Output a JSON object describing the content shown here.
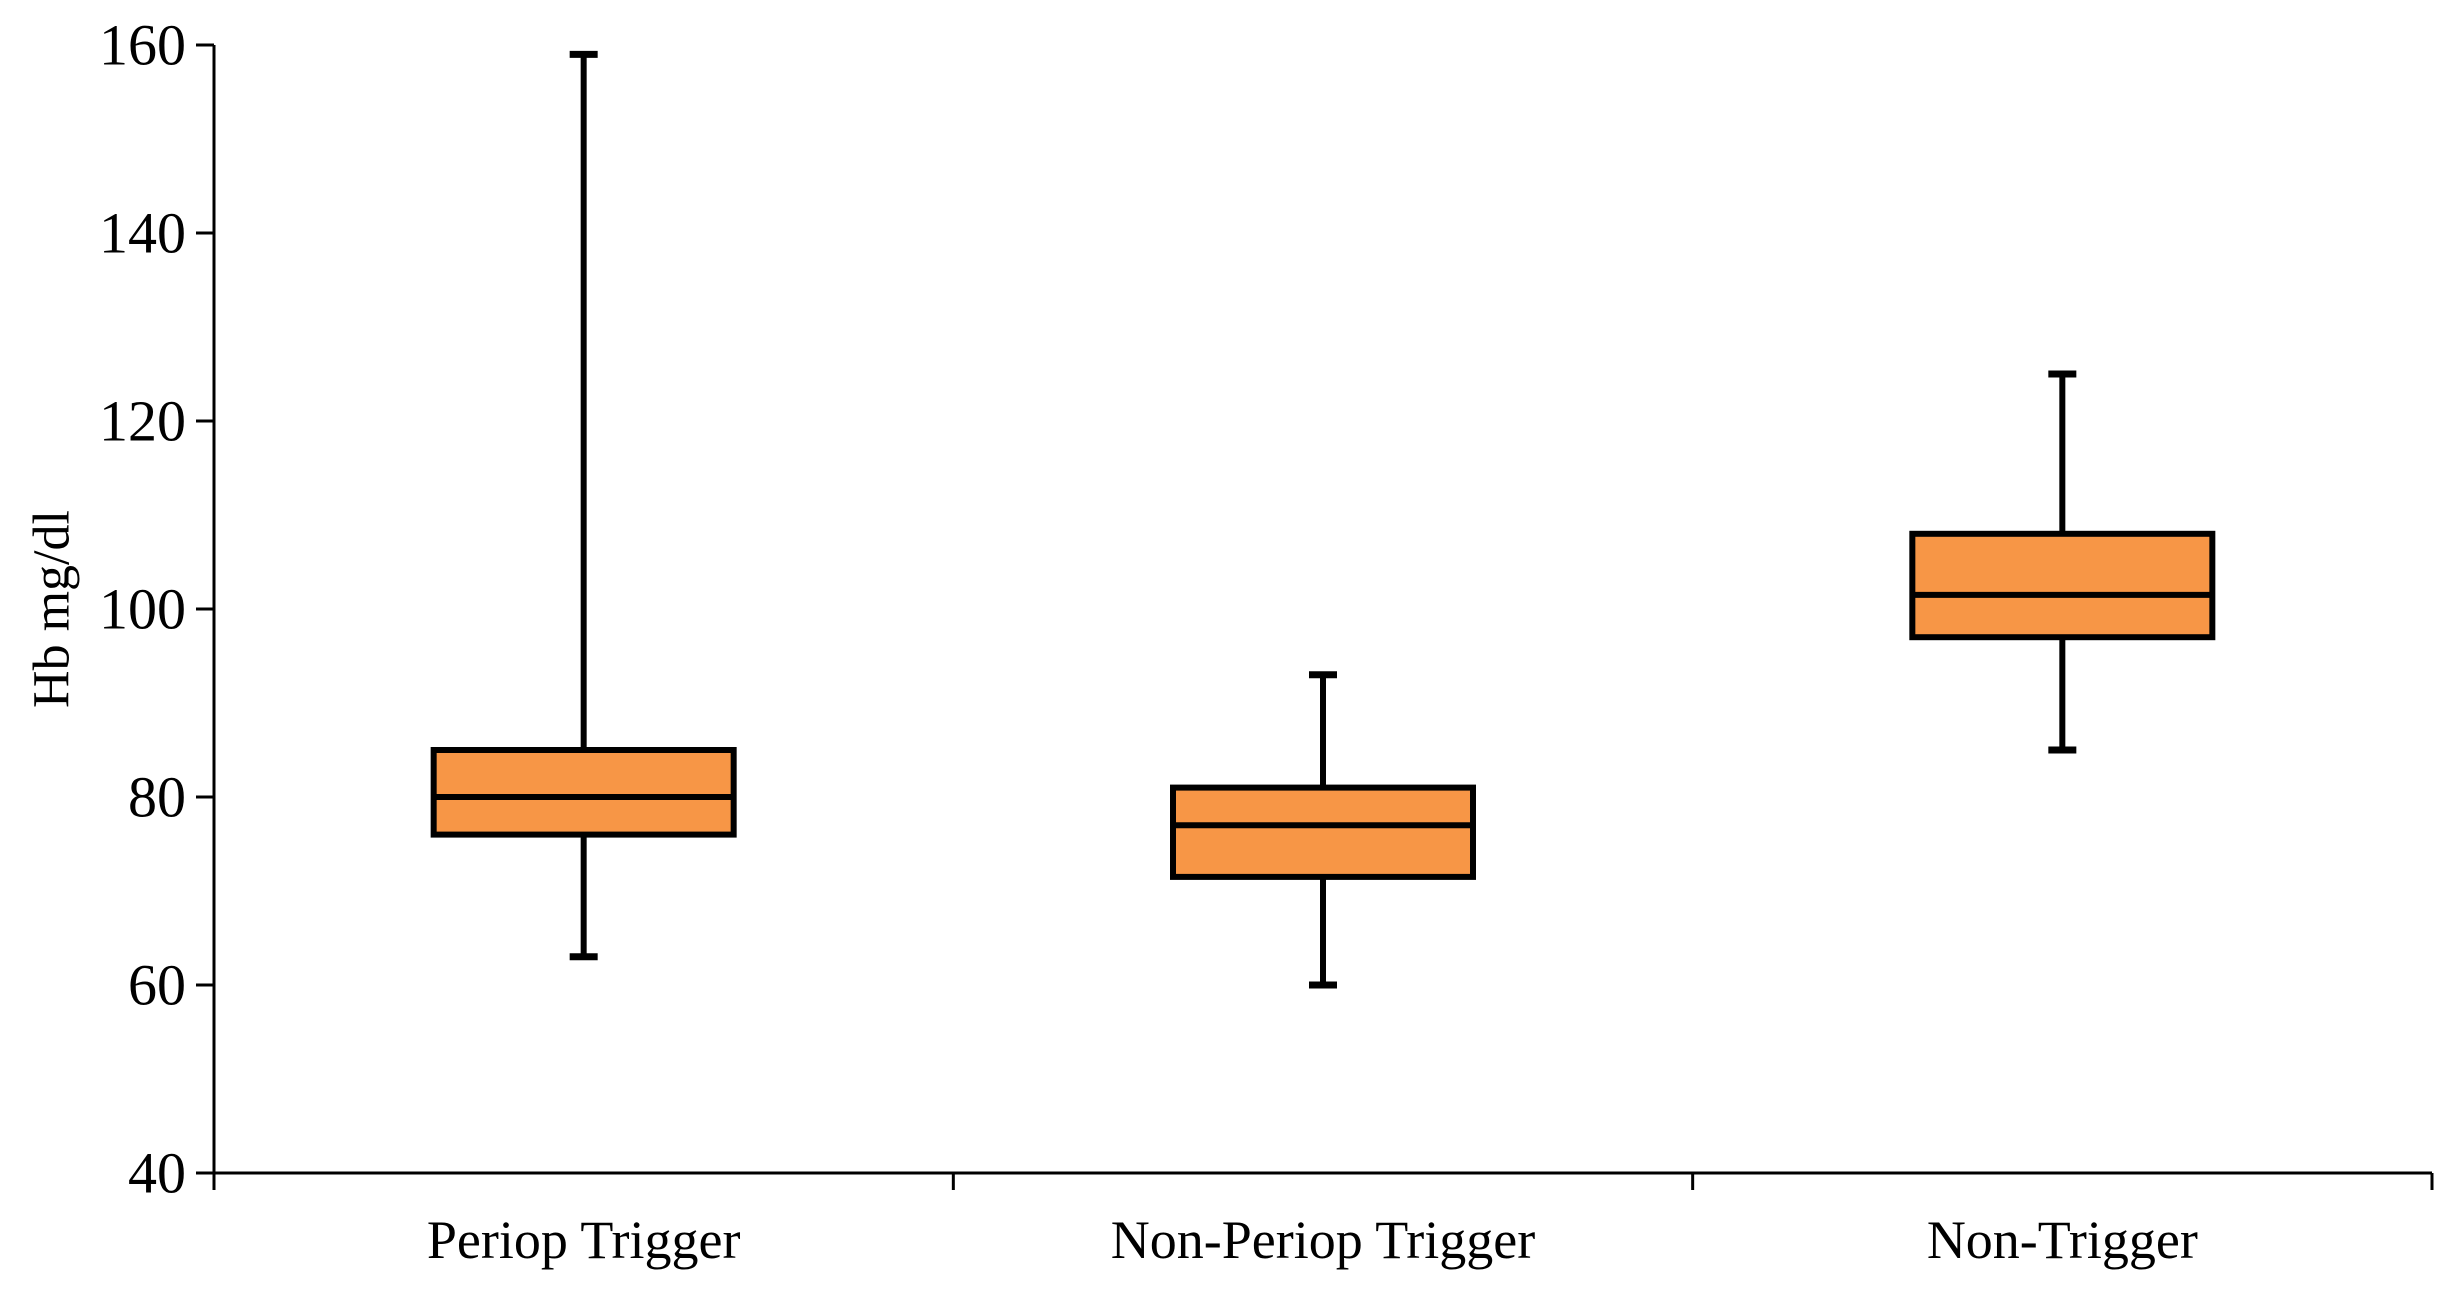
{
  "chart_data": {
    "type": "boxplot",
    "title": "",
    "ylabel": "Hb mg/dl",
    "xlabel": "",
    "categories": [
      "Periop Trigger",
      "Non-Periop Trigger",
      "Non-Trigger"
    ],
    "series": [
      {
        "name": "Periop Trigger",
        "min": 63,
        "q1": 76,
        "median": 80,
        "q3": 85,
        "max": 159
      },
      {
        "name": "Non-Periop Trigger",
        "min": 60,
        "q1": 71.5,
        "median": 77,
        "q3": 81,
        "max": 93
      },
      {
        "name": "Non-Trigger",
        "min": 85,
        "q1": 97,
        "median": 101.5,
        "q3": 108,
        "max": 125
      }
    ],
    "ylim": [
      40,
      160
    ],
    "yticks": [
      40,
      60,
      80,
      100,
      120,
      140,
      160
    ],
    "grid": false,
    "legend_position": "none",
    "box_fill_color": "#F79646",
    "line_color": "#000000",
    "background_color": "#FFFFFF"
  }
}
